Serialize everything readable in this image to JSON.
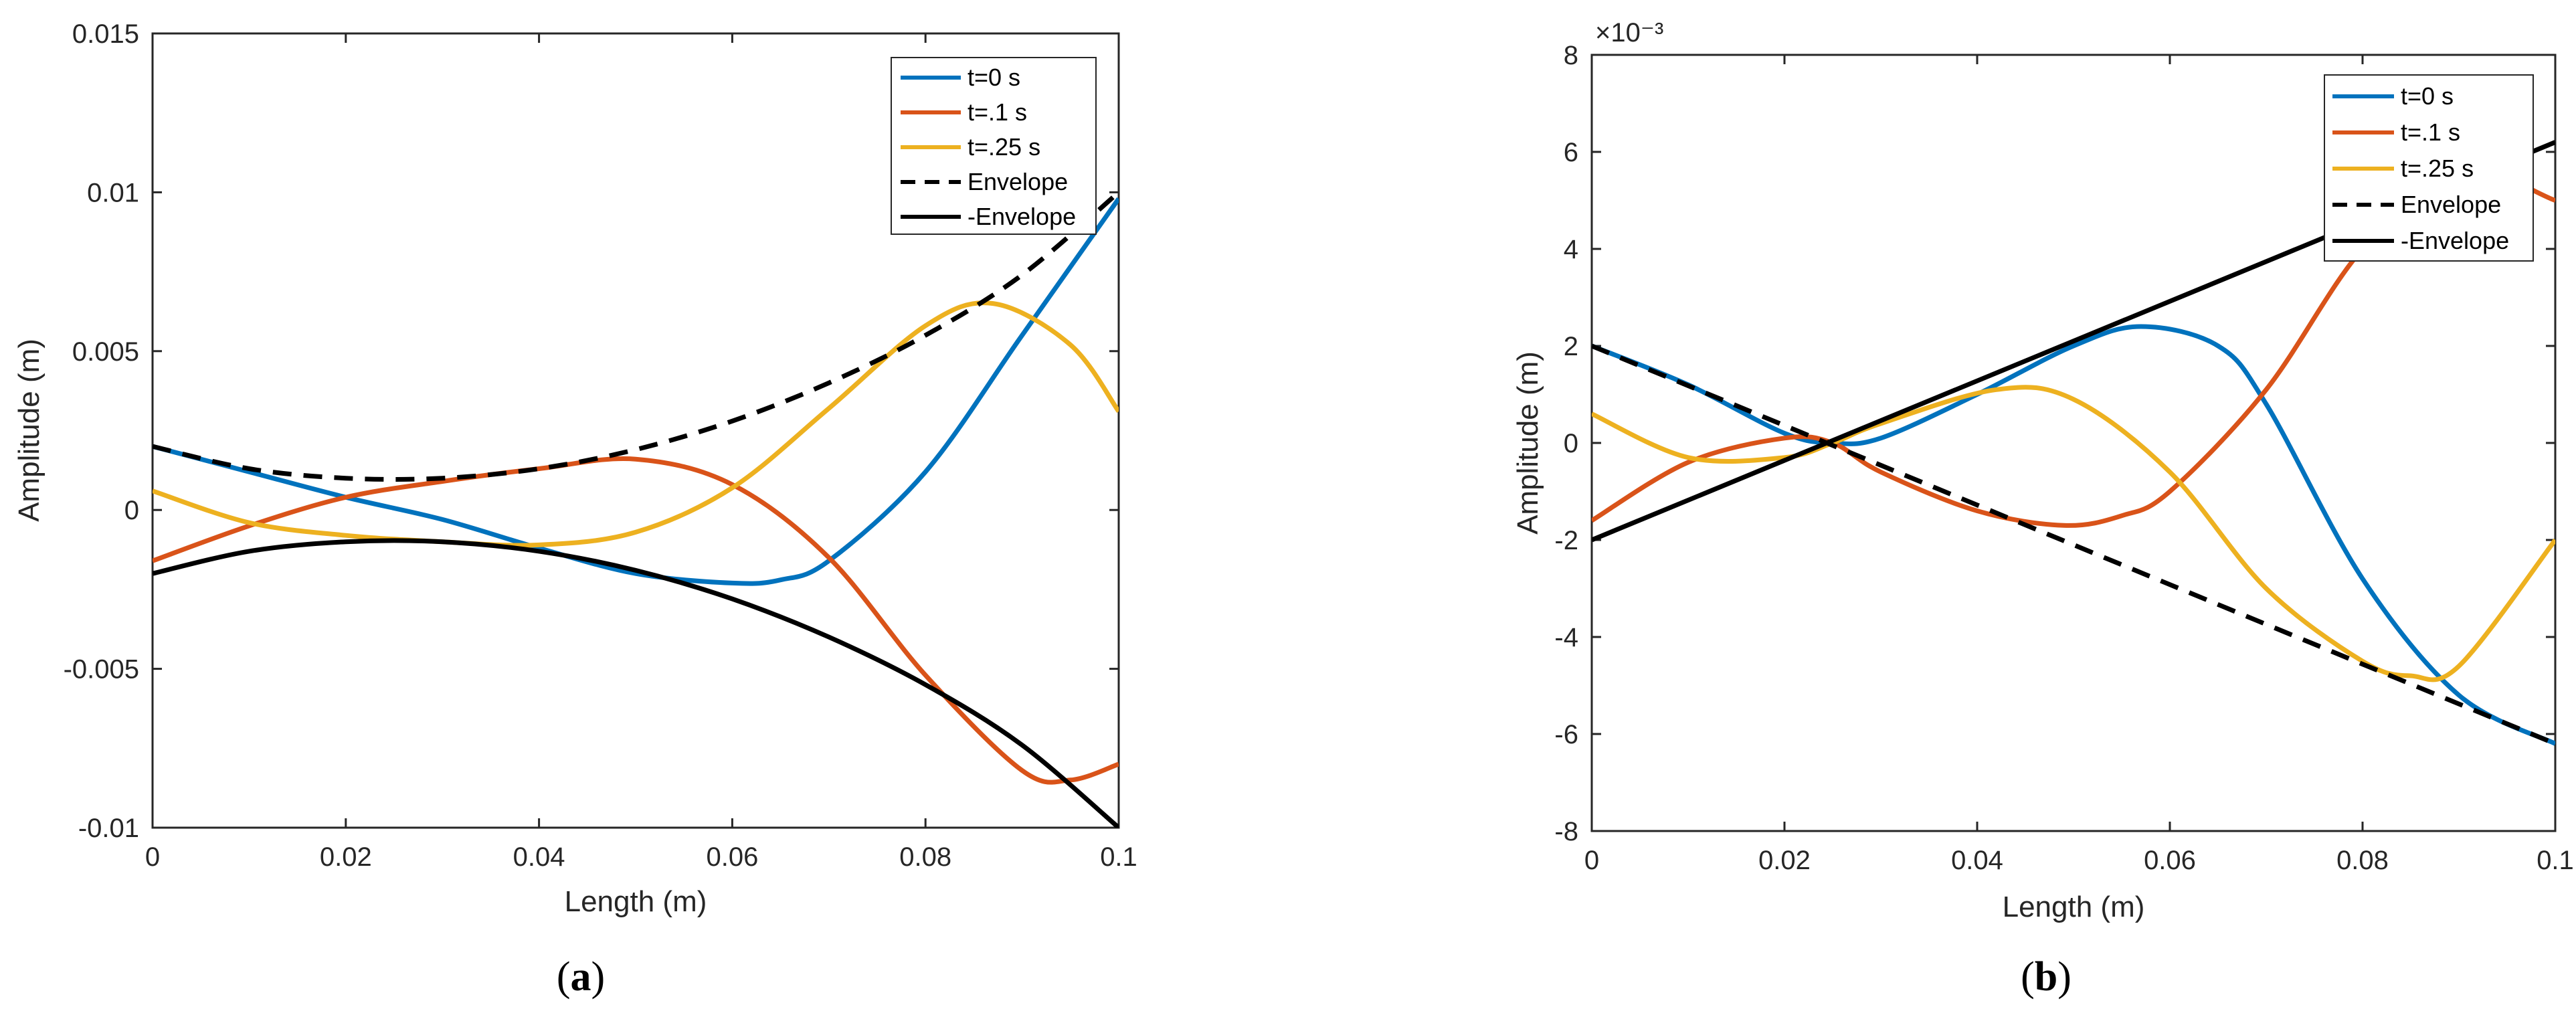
{
  "chart_data": [
    {
      "type": "line",
      "panel_label": {
        "open": "(",
        "letter": "a",
        "close": ")"
      },
      "xlabel": "Length (m)",
      "ylabel": "Amplitude (m)",
      "xlim": [
        0,
        0.1
      ],
      "ylim": [
        -0.01,
        0.015
      ],
      "xticks": [
        0,
        0.02,
        0.04,
        0.06,
        0.08,
        0.1
      ],
      "xtick_labels": [
        "0",
        "0.02",
        "0.04",
        "0.06",
        "0.08",
        "0.1"
      ],
      "yticks": [
        -0.01,
        -0.005,
        0,
        0.005,
        0.01,
        0.015
      ],
      "ytick_labels": [
        "-0.01",
        "-0.005",
        "0",
        "0.005",
        "0.01",
        "0.015"
      ],
      "exponent_label": "",
      "grid": false,
      "legend_position": "top-right",
      "series": [
        {
          "name": "t=0 s",
          "color": "#0072BD",
          "dash": "solid",
          "x": [
            0,
            0.01,
            0.02,
            0.03,
            0.04,
            0.05,
            0.06,
            0.065,
            0.07,
            0.08,
            0.09,
            0.1
          ],
          "y": [
            0.002,
            0.0012,
            0.0004,
            -0.0003,
            -0.0012,
            -0.002,
            -0.0023,
            -0.0022,
            -0.0016,
            0.0012,
            0.0055,
            0.0098
          ]
        },
        {
          "name": "t=.1 s",
          "color": "#D95319",
          "dash": "solid",
          "x": [
            0,
            0.01,
            0.02,
            0.03,
            0.04,
            0.05,
            0.06,
            0.07,
            0.08,
            0.09,
            0.095,
            0.1
          ],
          "y": [
            -0.0016,
            -0.0005,
            0.0004,
            0.0009,
            0.0013,
            0.0016,
            0.0008,
            -0.0015,
            -0.0052,
            -0.0082,
            -0.0085,
            -0.008
          ]
        },
        {
          "name": "t=.25 s",
          "color": "#EDB120",
          "dash": "solid",
          "x": [
            0,
            0.01,
            0.02,
            0.03,
            0.04,
            0.05,
            0.06,
            0.07,
            0.08,
            0.087,
            0.095,
            0.1
          ],
          "y": [
            0.0006,
            -0.0004,
            -0.0008,
            -0.001,
            -0.0011,
            -0.0007,
            0.0007,
            0.0032,
            0.0058,
            0.0065,
            0.0052,
            0.0031
          ]
        },
        {
          "name": "Envelope",
          "color": "#000000",
          "dash": "dashed",
          "x": [
            0,
            0.01,
            0.02,
            0.03,
            0.04,
            0.05,
            0.06,
            0.07,
            0.08,
            0.09,
            0.1
          ],
          "y": [
            0.002,
            0.0013,
            0.001,
            0.001,
            0.0013,
            0.0019,
            0.0028,
            0.004,
            0.0055,
            0.0074,
            0.01
          ]
        },
        {
          "name": "-Envelope",
          "color": "#000000",
          "dash": "solid",
          "x": [
            0,
            0.01,
            0.02,
            0.03,
            0.04,
            0.05,
            0.06,
            0.07,
            0.08,
            0.09,
            0.1
          ],
          "y": [
            -0.002,
            -0.0013,
            -0.001,
            -0.001,
            -0.0013,
            -0.0019,
            -0.0028,
            -0.004,
            -0.0055,
            -0.0074,
            -0.01
          ]
        }
      ]
    },
    {
      "type": "line",
      "panel_label": {
        "open": "(",
        "letter": "b",
        "close": ")"
      },
      "xlabel": "Length (m)",
      "ylabel": "Amplitude (m)",
      "xlim": [
        0,
        0.1
      ],
      "ylim": [
        -8,
        8
      ],
      "xticks": [
        0,
        0.02,
        0.04,
        0.06,
        0.08,
        0.1
      ],
      "xtick_labels": [
        "0",
        "0.02",
        "0.04",
        "0.06",
        "0.08",
        "0.1"
      ],
      "yticks": [
        -8,
        -6,
        -4,
        -2,
        0,
        2,
        4,
        6,
        8
      ],
      "ytick_labels": [
        "-8",
        "-6",
        "-4",
        "-2",
        "0",
        "2",
        "4",
        "6",
        "8"
      ],
      "exponent_label": "×10⁻³",
      "grid": false,
      "legend_position": "top-right",
      "series": [
        {
          "name": "t=0 s",
          "color": "#0072BD",
          "dash": "solid",
          "x": [
            0,
            0.01,
            0.02,
            0.025,
            0.03,
            0.04,
            0.05,
            0.057,
            0.065,
            0.07,
            0.08,
            0.09,
            0.1
          ],
          "y": [
            2,
            1.2,
            0.2,
            0,
            0.1,
            1.0,
            2.0,
            2.4,
            2.0,
            0.8,
            -2.8,
            -5.2,
            -6.2
          ]
        },
        {
          "name": "t=.1 s",
          "color": "#D95319",
          "dash": "solid",
          "x": [
            0,
            0.01,
            0.02,
            0.025,
            0.03,
            0.04,
            0.049,
            0.055,
            0.06,
            0.07,
            0.08,
            0.09,
            0.1
          ],
          "y": [
            -1.6,
            -0.4,
            0.1,
            0,
            -0.6,
            -1.4,
            -1.7,
            -1.5,
            -1.0,
            1.1,
            4.0,
            5.6,
            5.0
          ]
        },
        {
          "name": "t=.25 s",
          "color": "#EDB120",
          "dash": "solid",
          "x": [
            0,
            0.01,
            0.02,
            0.025,
            0.03,
            0.042,
            0.05,
            0.06,
            0.07,
            0.08,
            0.085,
            0.09,
            0.1
          ],
          "y": [
            0.6,
            -0.3,
            -0.3,
            0,
            0.4,
            1.1,
            0.9,
            -0.6,
            -3.0,
            -4.5,
            -4.8,
            -4.6,
            -2.0
          ]
        },
        {
          "name": "Envelope",
          "color": "#000000",
          "dash": "dashed",
          "x": [
            0,
            0.1
          ],
          "y": [
            2,
            -6.2
          ]
        },
        {
          "name": "-Envelope",
          "color": "#000000",
          "dash": "solid",
          "x": [
            0,
            0.1
          ],
          "y": [
            -2,
            6.2
          ]
        }
      ]
    }
  ]
}
